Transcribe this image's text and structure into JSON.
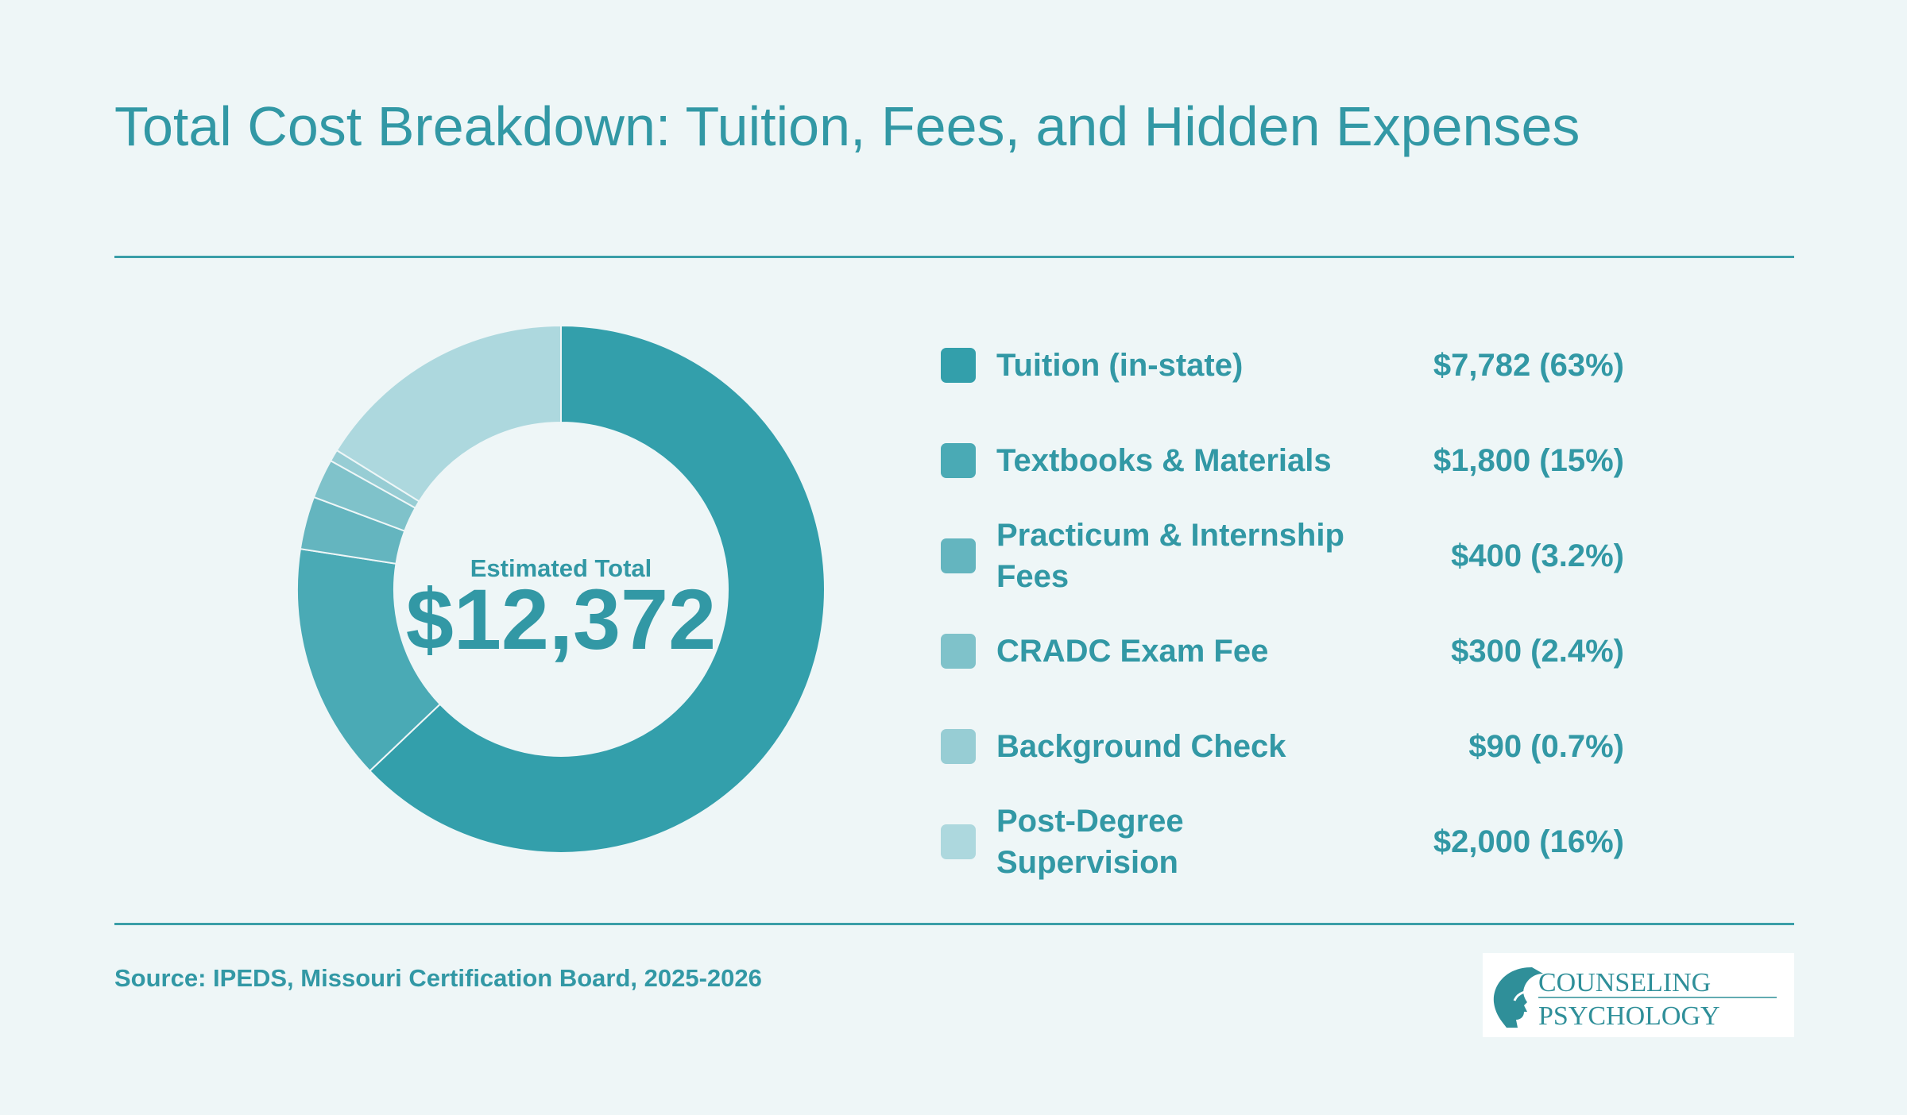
{
  "chart_data": {
    "type": "pie",
    "title": "Total Cost Breakdown: Tuition, Fees, and Hidden Expenses",
    "center_label": "Estimated Total",
    "center_value": "$12,372",
    "slices": [
      {
        "label": "Tuition (in-state)",
        "value": 7782,
        "value_text": "$7,782 (63%)",
        "color": "#339fab"
      },
      {
        "label": "Textbooks & Materials",
        "value": 1800,
        "value_text": "$1,800 (15%)",
        "color": "#4aaab5"
      },
      {
        "label": "Practicum & Internship Fees",
        "value": 400,
        "value_text": "$400 (3.2%)",
        "color": "#64b5bf"
      },
      {
        "label": "CRADC Exam Fee",
        "value": 300,
        "value_text": "$300 (2.4%)",
        "color": "#7fc2ca"
      },
      {
        "label": "Background Check",
        "value": 90,
        "value_text": "$90 (0.7%)",
        "color": "#97cdd4"
      },
      {
        "label": "Post-Degree Supervision",
        "value": 2000,
        "value_text": "$2,000 (16%)",
        "color": "#add8de"
      }
    ],
    "legend_position": "right"
  },
  "source": "Source: IPEDS, Missouri Certification Board, 2025-2026",
  "logo": {
    "line1": "COUNSELING",
    "line2": "PSYCHOLOGY"
  }
}
